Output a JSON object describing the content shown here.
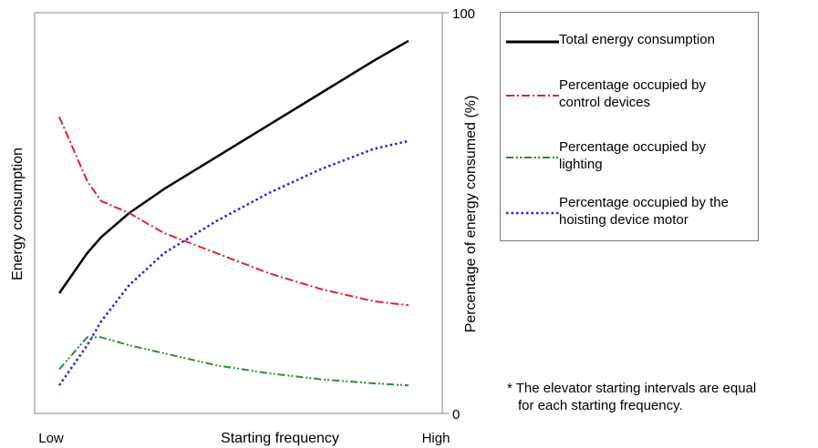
{
  "chart_data": {
    "type": "line",
    "xlabel": "Starting frequency",
    "x_tick_labels": [
      "Low",
      "High"
    ],
    "ylabel_left": "Energy consumption",
    "ylabel_right": "Percentage of energy consumed (%)",
    "right_ticks": [
      "100",
      "0"
    ],
    "ylim": [
      0,
      100
    ],
    "x": [
      0,
      0.08,
      0.12,
      0.2,
      0.3,
      0.45,
      0.6,
      0.75,
      0.9,
      1.0
    ],
    "series": [
      {
        "name": "Total energy consumption",
        "color": "#000000",
        "style": "solid",
        "values": [
          30,
          40,
          44,
          50,
          56,
          64,
          72,
          80,
          88,
          93
        ]
      },
      {
        "name": "Percentage occupied by control devices",
        "color": "#e0203c",
        "style": "dashdot",
        "values": [
          74,
          58,
          53,
          50,
          45,
          40,
          35,
          31,
          28,
          27
        ]
      },
      {
        "name": "Percentage occupied by lighting",
        "color": "#2e8b3a",
        "style": "dashdotdot",
        "values": [
          11,
          19,
          19,
          17,
          15,
          12,
          10,
          8.5,
          7.5,
          7
        ]
      },
      {
        "name": "Percentage occupied by the hoisting device motor",
        "color": "#2323e0",
        "style": "dotted",
        "values": [
          7,
          17,
          23,
          32,
          40,
          48,
          55,
          61,
          66,
          68
        ]
      }
    ],
    "grid": false,
    "legend_position": "right"
  },
  "legend": {
    "items": [
      {
        "text": "Total energy consumption"
      },
      {
        "text": "Percentage occupied by control devices"
      },
      {
        "text": "Percentage occupied by lighting"
      },
      {
        "text": "Percentage occupied by the hoisting device motor"
      }
    ]
  },
  "note": {
    "line1": "* The elevator starting intervals are equal",
    "line2": "for each starting frequency."
  }
}
